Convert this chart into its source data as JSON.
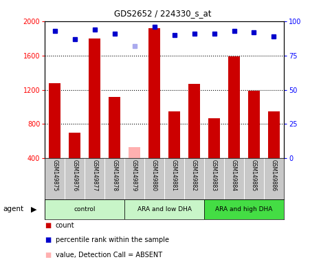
{
  "title": "GDS2652 / 224330_s_at",
  "samples": [
    "GSM149875",
    "GSM149876",
    "GSM149877",
    "GSM149878",
    "GSM149879",
    "GSM149880",
    "GSM149881",
    "GSM149882",
    "GSM149883",
    "GSM149884",
    "GSM149885",
    "GSM149886"
  ],
  "bar_heights": [
    1280,
    700,
    1800,
    1120,
    530,
    1920,
    950,
    1270,
    870,
    1590,
    1190,
    950
  ],
  "bar_absent": [
    false,
    false,
    false,
    false,
    true,
    false,
    false,
    false,
    false,
    false,
    false,
    false
  ],
  "percentile_ranks": [
    93,
    87,
    94,
    91,
    82,
    96,
    90,
    91,
    91,
    93,
    92,
    89
  ],
  "rank_absent": [
    false,
    false,
    false,
    false,
    true,
    false,
    false,
    false,
    false,
    false,
    false,
    false
  ],
  "groups": [
    {
      "label": "control",
      "start": 0,
      "end": 4
    },
    {
      "label": "ARA and low DHA",
      "start": 4,
      "end": 8
    },
    {
      "label": "ARA and high DHA",
      "start": 8,
      "end": 12
    }
  ],
  "group_colors": [
    "#c8f5c8",
    "#c8f5c8",
    "#44dd44"
  ],
  "ylim_left": [
    400,
    2000
  ],
  "ylim_right": [
    0,
    100
  ],
  "yticks_left": [
    400,
    800,
    1200,
    1600,
    2000
  ],
  "yticks_right": [
    0,
    25,
    50,
    75,
    100
  ],
  "bar_color_normal": "#cc0000",
  "bar_color_absent": "#ffb0b0",
  "dot_color_normal": "#0000cc",
  "dot_color_absent": "#aaaaee",
  "plot_bg": "#ffffff",
  "xticklabel_bg": "#c8c8c8",
  "legend_items": [
    {
      "color": "#cc0000",
      "label": "count"
    },
    {
      "color": "#0000cc",
      "label": "percentile rank within the sample"
    },
    {
      "color": "#ffb0b0",
      "label": "value, Detection Call = ABSENT"
    },
    {
      "color": "#aaaaee",
      "label": "rank, Detection Call = ABSENT"
    }
  ]
}
